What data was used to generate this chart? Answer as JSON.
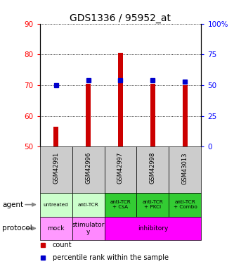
{
  "title": "GDS1336 / 95952_at",
  "samples": [
    "GSM42991",
    "GSM42996",
    "GSM42997",
    "GSM42998",
    "GSM43013"
  ],
  "count_values": [
    56.5,
    70.5,
    80.5,
    70.5,
    70.0
  ],
  "count_base": 50,
  "percentile_values": [
    50,
    54,
    54,
    54,
    53
  ],
  "left_ylim": [
    50,
    90
  ],
  "right_ylim": [
    0,
    100
  ],
  "left_yticks": [
    50,
    60,
    70,
    80,
    90
  ],
  "right_yticks": [
    0,
    25,
    50,
    75,
    100
  ],
  "right_yticklabels": [
    "0",
    "25",
    "50",
    "75",
    "100%"
  ],
  "bar_color": "#cc0000",
  "dot_color": "#0000cc",
  "agent_labels": [
    "untreated",
    "anti-TCR",
    "anti-TCR\n+ CsA",
    "anti-TCR\n+ PKCi",
    "anti-TCR\n+ Combo"
  ],
  "agent_bg_light": "#ccffcc",
  "agent_bg_dark": "#33cc33",
  "agent_bg_colors": [
    "#ccffcc",
    "#ccffcc",
    "#33cc33",
    "#33cc33",
    "#33cc33"
  ],
  "protocol_spans": [
    [
      0,
      0,
      "mock"
    ],
    [
      1,
      1,
      "stimulator\ny"
    ],
    [
      2,
      4,
      "inhibitory"
    ]
  ],
  "protocol_colors_span": [
    "#ff99ff",
    "#ff88ff",
    "#ff00ff"
  ],
  "legend_count_color": "#cc0000",
  "legend_dot_color": "#0000cc",
  "xlabel_agent": "agent",
  "xlabel_protocol": "protocol",
  "sample_bg": "#cccccc",
  "bar_width": 0.15
}
